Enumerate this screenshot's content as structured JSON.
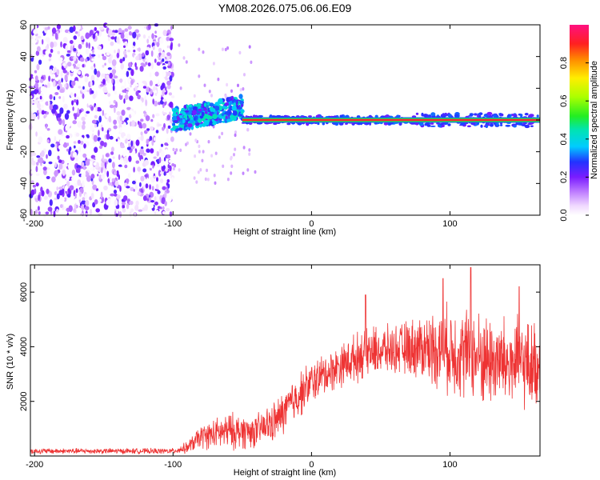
{
  "title": "YM08.2026.075.06.06.E09",
  "chart_data": [
    {
      "type": "heatmap",
      "xlabel": "Height of straight line (km)",
      "ylabel": "Frequency (Hz)",
      "xlim": [
        -203,
        165
      ],
      "ylim": [
        -60,
        60
      ],
      "xticks": [
        -200,
        -100,
        0,
        100
      ],
      "yticks": [
        -60,
        -40,
        -20,
        0,
        20,
        40,
        60
      ],
      "colorbar": {
        "label": "Normalized spectral amplitude",
        "range": [
          0.0,
          1.0
        ],
        "ticks": [
          0.0,
          0.2,
          0.4,
          0.6,
          0.8
        ],
        "tick_labels": [
          "0.0",
          "0.2",
          "0.4",
          "0.6",
          "0.8"
        ]
      },
      "regions": [
        {
          "name": "broadband noise",
          "x_range": [
            -203,
            -100
          ],
          "freq_range": [
            -60,
            60
          ],
          "amplitude": [
            0.0,
            0.25
          ]
        },
        {
          "name": "transition",
          "x_range": [
            -100,
            -50
          ],
          "freq_range": [
            -10,
            15
          ],
          "amplitude": [
            0.2,
            0.45
          ]
        },
        {
          "name": "carrier ridge",
          "x_range": [
            -50,
            165
          ],
          "freq": 0,
          "amplitude": [
            0.8,
            1.0
          ]
        }
      ]
    },
    {
      "type": "line",
      "xlabel": "Height of straight line (km)",
      "ylabel": "SNR (10 * v/v)",
      "xlim": [
        -203,
        165
      ],
      "ylim": [
        0,
        7000
      ],
      "xticks": [
        -200,
        -100,
        0,
        100
      ],
      "yticks": [
        2000,
        4000,
        6000
      ],
      "series": [
        {
          "name": "SNR",
          "color": "#ee3333",
          "envelope": [
            {
              "x": -203,
              "mean": 180,
              "spread": 120
            },
            {
              "x": -100,
              "mean": 180,
              "spread": 120
            },
            {
              "x": -90,
              "mean": 300,
              "spread": 250
            },
            {
              "x": -80,
              "mean": 700,
              "spread": 500
            },
            {
              "x": -60,
              "mean": 900,
              "spread": 800
            },
            {
              "x": -40,
              "mean": 900,
              "spread": 700
            },
            {
              "x": -25,
              "mean": 1300,
              "spread": 900
            },
            {
              "x": -10,
              "mean": 2200,
              "spread": 1000
            },
            {
              "x": 0,
              "mean": 2700,
              "spread": 900
            },
            {
              "x": 20,
              "mean": 3300,
              "spread": 900
            },
            {
              "x": 40,
              "mean": 3800,
              "spread": 1100
            },
            {
              "x": 60,
              "mean": 3900,
              "spread": 1000
            },
            {
              "x": 80,
              "mean": 4000,
              "spread": 1400
            },
            {
              "x": 100,
              "mean": 3900,
              "spread": 1900
            },
            {
              "x": 120,
              "mean": 3600,
              "spread": 2000
            },
            {
              "x": 140,
              "mean": 3400,
              "spread": 2000
            },
            {
              "x": 165,
              "mean": 3300,
              "spread": 1800
            }
          ],
          "peaks": [
            {
              "x": 39,
              "y": 5900
            },
            {
              "x": 95,
              "y": 6500
            },
            {
              "x": 115,
              "y": 6900
            },
            {
              "x": 150,
              "y": 6200
            }
          ]
        }
      ]
    }
  ]
}
